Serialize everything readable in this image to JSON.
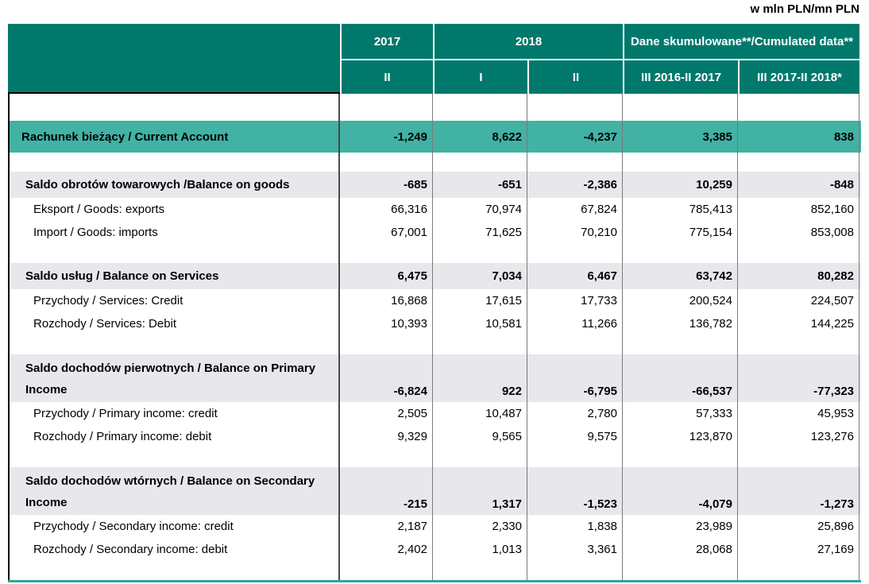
{
  "unit_label": "w mln PLN/mn PLN",
  "table": {
    "header": {
      "col_2017": "2017",
      "col_2018": "2018",
      "col_cumulated": "Dane skumulowane**/Cumulated data**",
      "subcols": [
        "II",
        "I",
        "II",
        "III 2016-II 2017",
        "III 2017-II 2018*"
      ]
    },
    "rows": [
      {
        "id": "spacer-top",
        "style": "spacer-lg",
        "label": "",
        "values": [
          "",
          "",
          "",
          "",
          ""
        ]
      },
      {
        "id": "current-account",
        "style": "highlight",
        "label": "Rachunek bieżący / Current Account",
        "values": [
          "-1,249",
          "8,622",
          "-4,237",
          "3,385",
          "838"
        ]
      },
      {
        "id": "spacer-1",
        "style": "spacer",
        "label": "",
        "values": [
          "",
          "",
          "",
          "",
          ""
        ]
      },
      {
        "id": "balance-on-goods",
        "style": "section",
        "label": "Saldo obrotów towarowych /Balance on goods",
        "values": [
          "-685",
          "-651",
          "-2,386",
          "10,259",
          "-848"
        ]
      },
      {
        "id": "goods-exports",
        "style": "item",
        "label": "Eksport / Goods: exports",
        "values": [
          "66,316",
          "70,974",
          "67,824",
          "785,413",
          "852,160"
        ]
      },
      {
        "id": "goods-imports",
        "style": "item",
        "label": "Import / Goods: imports",
        "values": [
          "67,001",
          "71,625",
          "70,210",
          "775,154",
          "853,008"
        ]
      },
      {
        "id": "spacer-2",
        "style": "spacer",
        "label": "",
        "values": [
          "",
          "",
          "",
          "",
          ""
        ]
      },
      {
        "id": "balance-on-services",
        "style": "section",
        "label": "Saldo usług / Balance on Services",
        "values": [
          "6,475",
          "7,034",
          "6,467",
          "63,742",
          "80,282"
        ]
      },
      {
        "id": "services-credit",
        "style": "item",
        "label": "Przychody / Services: Credit",
        "values": [
          "16,868",
          "17,615",
          "17,733",
          "200,524",
          "224,507"
        ]
      },
      {
        "id": "services-debit",
        "style": "item",
        "label": "Rozchody / Services: Debit",
        "values": [
          "10,393",
          "10,581",
          "11,266",
          "136,782",
          "144,225"
        ]
      },
      {
        "id": "spacer-3",
        "style": "spacer",
        "label": "",
        "values": [
          "",
          "",
          "",
          "",
          ""
        ]
      },
      {
        "id": "balance-on-primary-income",
        "style": "section-tall",
        "label": "Saldo dochodów pierwotnych / Balance on Primary Income",
        "values": [
          "-6,824",
          "922",
          "-6,795",
          "-66,537",
          "-77,323"
        ]
      },
      {
        "id": "primary-income-credit",
        "style": "item",
        "label": "Przychody / Primary income: credit",
        "values": [
          "2,505",
          "10,487",
          "2,780",
          "57,333",
          "45,953"
        ]
      },
      {
        "id": "primary-income-debit",
        "style": "item",
        "label": "Rozchody / Primary income: debit",
        "values": [
          "9,329",
          "9,565",
          "9,575",
          "123,870",
          "123,276"
        ]
      },
      {
        "id": "spacer-4",
        "style": "spacer",
        "label": "",
        "values": [
          "",
          "",
          "",
          "",
          ""
        ]
      },
      {
        "id": "balance-on-secondary-income",
        "style": "section-tall",
        "label": "Saldo dochodów wtórnych / Balance on Secondary Income",
        "values": [
          "-215",
          "1,317",
          "-1,523",
          "-4,079",
          "-1,273"
        ]
      },
      {
        "id": "secondary-income-credit",
        "style": "item",
        "label": "Przychody / Secondary income: credit",
        "values": [
          "2,187",
          "2,330",
          "1,838",
          "23,989",
          "25,896"
        ]
      },
      {
        "id": "secondary-income-debit",
        "style": "item",
        "label": "Rozchody / Secondary income: debit",
        "values": [
          "2,402",
          "1,013",
          "3,361",
          "28,068",
          "27,169"
        ]
      },
      {
        "id": "spacer-bottom",
        "style": "spacer",
        "label": "",
        "values": [
          "",
          "",
          "",
          "",
          ""
        ]
      }
    ]
  },
  "colors": {
    "header_bg": "#00796C",
    "highlight_bg": "#41B2A4",
    "section_bg": "#E8E8EC",
    "grid_line": "#7A7A7A",
    "label_divider": "#4A4A4A",
    "bottom_bar": "#2FA79B",
    "header_text": "#FFFFFF",
    "body_text": "#000000"
  },
  "chart_data": {
    "type": "table",
    "title": "w mln PLN/mn PLN",
    "columns": [
      "",
      "2017 II",
      "2018 I",
      "2018 II",
      "III 2016-II 2017",
      "III 2017-II 2018*"
    ],
    "rows": [
      {
        "label": "Rachunek bieżący / Current Account",
        "values": [
          -1249,
          8622,
          -4237,
          3385,
          838
        ]
      },
      {
        "label": "Saldo obrotów towarowych /Balance on goods",
        "values": [
          -685,
          -651,
          -2386,
          10259,
          -848
        ]
      },
      {
        "label": "Eksport / Goods: exports",
        "values": [
          66316,
          70974,
          67824,
          785413,
          852160
        ]
      },
      {
        "label": "Import / Goods: imports",
        "values": [
          67001,
          71625,
          70210,
          775154,
          853008
        ]
      },
      {
        "label": "Saldo usług / Balance on Services",
        "values": [
          6475,
          7034,
          6467,
          63742,
          80282
        ]
      },
      {
        "label": "Przychody / Services: Credit",
        "values": [
          16868,
          17615,
          17733,
          200524,
          224507
        ]
      },
      {
        "label": "Rozchody / Services: Debit",
        "values": [
          10393,
          10581,
          11266,
          136782,
          144225
        ]
      },
      {
        "label": "Saldo dochodów pierwotnych / Balance on Primary Income",
        "values": [
          -6824,
          922,
          -6795,
          -66537,
          -77323
        ]
      },
      {
        "label": "Przychody / Primary income: credit",
        "values": [
          2505,
          10487,
          2780,
          57333,
          45953
        ]
      },
      {
        "label": "Rozchody / Primary income: debit",
        "values": [
          9329,
          9565,
          9575,
          123870,
          123276
        ]
      },
      {
        "label": "Saldo dochodów wtórnych / Balance on Secondary Income",
        "values": [
          -215,
          1317,
          -1523,
          -4079,
          -1273
        ]
      },
      {
        "label": "Przychody / Secondary income: credit",
        "values": [
          2187,
          2330,
          1838,
          23989,
          25896
        ]
      },
      {
        "label": "Rozchody / Secondary income: debit",
        "values": [
          2402,
          1013,
          3361,
          28068,
          27169
        ]
      }
    ]
  }
}
